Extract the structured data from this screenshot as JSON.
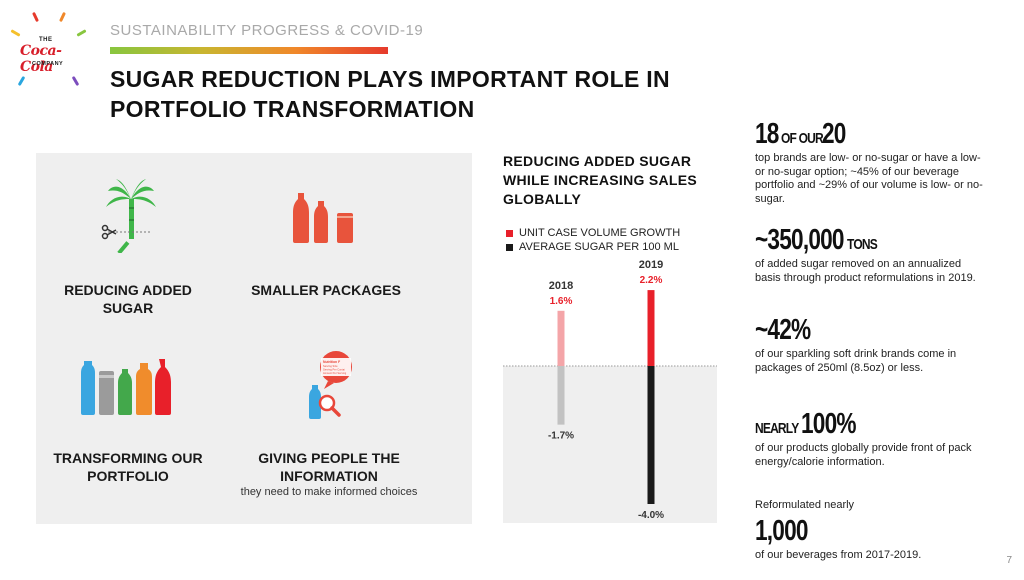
{
  "brand": {
    "the": "THE",
    "script": "Coca-Cola",
    "company": "COMPANY",
    "ray_colors": [
      "#e63a2c",
      "#f0882a",
      "#f5c02c",
      "#88c63f",
      "#2aa6df",
      "#7c4dbd"
    ]
  },
  "header": {
    "eyebrow": "SUSTAINABILITY PROGRESS & COVID-19",
    "title": "SUGAR REDUCTION PLAYS IMPORTANT ROLE IN PORTFOLIO TRANSFORMATION"
  },
  "pillars": [
    {
      "label": "REDUCING ADDED SUGAR",
      "icon": "sugarcane-scissors-icon",
      "sub": ""
    },
    {
      "label": "SMALLER PACKAGES",
      "icon": "small-bottles-icon",
      "sub": ""
    },
    {
      "label": "TRANSFORMING OUR PORTFOLIO",
      "icon": "beverage-portfolio-icon",
      "sub": ""
    },
    {
      "label": "GIVING PEOPLE THE INFORMATION",
      "icon": "nutrition-label-magnifier-icon",
      "sub": "they need to make informed choices"
    }
  ],
  "icon_labels": {
    "nutrition_facts": "Nutrition F",
    "line1": "Serving Size",
    "line2": "Serving Per Contai",
    "line3": "Amount Per Serving"
  },
  "chart": {
    "title": "REDUCING ADDED SUGAR WHILE INCREASING SALES GLOBALLY",
    "legend": [
      {
        "label": "UNIT CASE VOLUME GROWTH",
        "color": "#e8202a"
      },
      {
        "label": "AVERAGE SUGAR PER 100 ML",
        "color": "#1a1a1a"
      }
    ]
  },
  "chart_data": {
    "type": "bar",
    "title": "REDUCING ADDED SUGAR WHILE INCREASING SALES GLOBALLY",
    "categories": [
      "2018",
      "2019"
    ],
    "series": [
      {
        "name": "UNIT CASE VOLUME GROWTH",
        "values": [
          1.6,
          2.2
        ],
        "labels": [
          "1.6%",
          "2.2%"
        ],
        "colors": [
          "#f4a5a8",
          "#e8202a"
        ]
      },
      {
        "name": "AVERAGE SUGAR PER 100 ML",
        "values": [
          -1.7,
          -4.0
        ],
        "labels": [
          "-1.7%",
          "-4.0%"
        ],
        "colors": [
          "#c2c2c2",
          "#1a1a1a"
        ]
      }
    ],
    "ylim": [
      -4.0,
      2.2
    ],
    "grid": false,
    "legend": "top-left"
  },
  "stats": [
    {
      "big": "18",
      "small": "OF OUR",
      "big2": "20",
      "desc": "top brands are low- or no-sugar or have a low- or no-sugar option; ~45% of our beverage portfolio and ~29% of our volume is low- or no-sugar."
    },
    {
      "big": "~350,000",
      "small": "TONS",
      "big2": "",
      "desc": "of added sugar removed on an annualized basis through product reformulations in 2019."
    },
    {
      "big": "~42%",
      "small": "",
      "big2": "",
      "desc": "of our sparkling soft drink brands come in packages of 250ml (8.5oz) or less."
    },
    {
      "big": "100%",
      "small": "NEARLY",
      "big2": "",
      "desc": "of our products globally provide front of pack energy/calorie information."
    },
    {
      "pre": "Reformulated nearly",
      "big": "1,000",
      "small": "",
      "big2": "",
      "desc": "of our beverages from 2017-2019."
    }
  ],
  "page_number": "7"
}
